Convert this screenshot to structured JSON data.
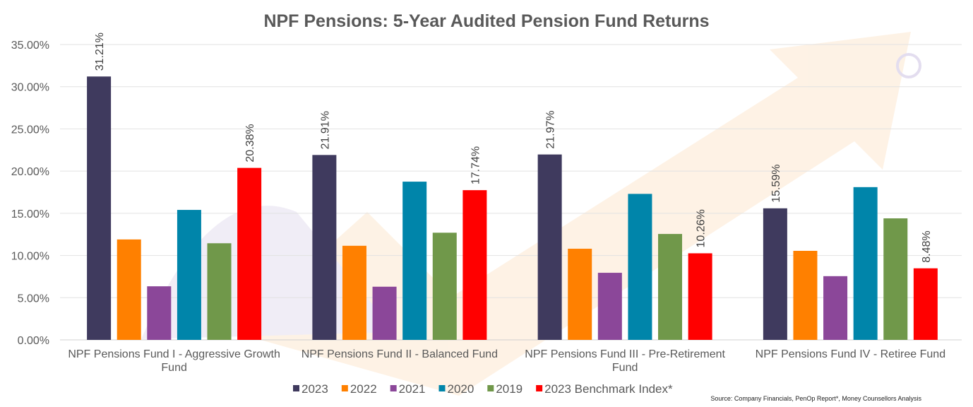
{
  "chart_data": {
    "type": "bar",
    "title": "NPF Pensions: 5-Year Audited Pension Fund Returns",
    "categories": [
      [
        "NPF Pensions Fund I - Aggressive Growth",
        "Fund"
      ],
      [
        "NPF Pensions Fund II - Balanced Fund"
      ],
      [
        "NPF Pensions Fund III - Pre-Retirement",
        "Fund"
      ],
      [
        "NPF Pensions Fund IV - Retiree Fund"
      ]
    ],
    "series": [
      {
        "name": "2023",
        "color": "#3f3a5e",
        "values": [
          31.21,
          21.91,
          21.97,
          15.59
        ],
        "labels": [
          "31.21%",
          "21.91%",
          "21.97%",
          "15.59%"
        ]
      },
      {
        "name": "2022",
        "color": "#ff8000",
        "values": [
          11.9,
          11.15,
          10.8,
          10.55
        ]
      },
      {
        "name": "2021",
        "color": "#8b4799",
        "values": [
          6.35,
          6.3,
          7.95,
          7.55
        ]
      },
      {
        "name": "2020",
        "color": "#0085aa",
        "values": [
          15.4,
          18.75,
          17.3,
          18.1
        ]
      },
      {
        "name": "2019",
        "color": "#70984a",
        "values": [
          11.45,
          12.7,
          12.55,
          14.4
        ]
      },
      {
        "name": "2023 Benchmark Index*",
        "color": "#ff0000",
        "values": [
          20.38,
          17.74,
          10.26,
          8.48
        ],
        "labels": [
          "20.38%",
          "17.74%",
          "10.26%",
          "8.48%"
        ]
      }
    ],
    "ylim": [
      0,
      35
    ],
    "yticks": [
      "0.00%",
      "5.00%",
      "10.00%",
      "15.00%",
      "20.00%",
      "25.00%",
      "30.00%",
      "35.00%"
    ],
    "grid": true,
    "legend": "bottom",
    "source": "Source: Company Financials, PenOp Report*, Money Counsellors Analysis"
  }
}
